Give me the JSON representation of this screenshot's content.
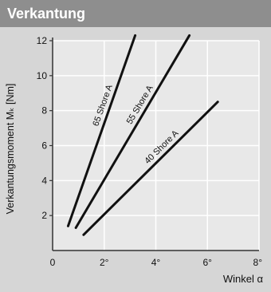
{
  "header": {
    "title": "Verkantung"
  },
  "colors": {
    "header_bg": "#8e8e8e",
    "page_bg": "#d6d6d6",
    "plot_bg": "#e8e8e8",
    "grid": "#ffffff",
    "line": "#111111"
  },
  "chart_data": {
    "type": "line",
    "title": "Verkantung",
    "xlabel": "Winkel α",
    "ylabel": "Verkantungsmoment Mₖ [Nm]",
    "xlim": [
      0,
      8
    ],
    "ylim": [
      0,
      12
    ],
    "grid": true,
    "x_ticks": [
      0,
      2,
      4,
      6,
      8
    ],
    "x_tick_labels": [
      "0",
      "2°",
      "4°",
      "6°",
      "8°"
    ],
    "y_ticks": [
      2,
      4,
      6,
      8,
      10,
      12
    ],
    "y_tick_labels": [
      "2",
      "4",
      "6",
      "8",
      "10",
      "12"
    ],
    "series": [
      {
        "name": "65 Shore A",
        "x": [
          0.6,
          3.2
        ],
        "y": [
          1.4,
          12.3
        ]
      },
      {
        "name": "55 Shore A",
        "x": [
          0.9,
          5.3
        ],
        "y": [
          1.3,
          12.3
        ]
      },
      {
        "name": "40 Shore A",
        "x": [
          1.2,
          6.4
        ],
        "y": [
          0.9,
          8.5
        ]
      }
    ]
  }
}
